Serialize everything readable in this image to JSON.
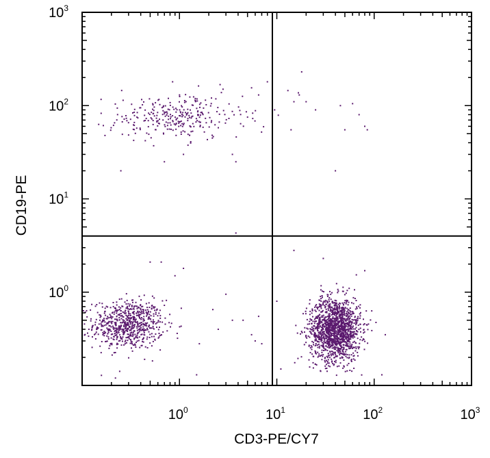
{
  "chart_data": {
    "type": "scatter",
    "xlabel": "CD3-PE/CY7",
    "ylabel": "CD19-PE",
    "xscale": "log",
    "yscale": "log",
    "xlim": [
      0.1,
      1000
    ],
    "ylim": [
      0.1,
      1000
    ],
    "x_tick_labels": [
      {
        "value": 1,
        "base": "10",
        "exp": "0"
      },
      {
        "value": 10,
        "base": "10",
        "exp": "1"
      },
      {
        "value": 100,
        "base": "10",
        "exp": "2"
      },
      {
        "value": 1000,
        "base": "10",
        "exp": "3"
      }
    ],
    "y_tick_labels": [
      {
        "value": 1,
        "base": "10",
        "exp": "0"
      },
      {
        "value": 10,
        "base": "10",
        "exp": "1"
      },
      {
        "value": 100,
        "base": "10",
        "exp": "2"
      },
      {
        "value": 1000,
        "base": "10",
        "exp": "3"
      }
    ],
    "quadrant_gates": {
      "x": 9,
      "y": 4
    },
    "grid": false,
    "point_color": "#5b1a6e",
    "populations": [
      {
        "x_center": 0.3,
        "y_center": 0.45,
        "x_log_sd": 0.18,
        "y_log_sd": 0.13,
        "count": 700
      },
      {
        "x_center": 40,
        "y_center": 0.4,
        "x_log_sd": 0.13,
        "y_log_sd": 0.17,
        "count": 1500
      },
      {
        "x_center": 0.9,
        "y_center": 75,
        "x_log_sd": 0.35,
        "y_log_sd": 0.12,
        "count": 300
      }
    ],
    "points": [
      [
        18,
        230
      ],
      [
        8,
        180
      ],
      [
        0.85,
        180
      ],
      [
        1.0,
        130
      ],
      [
        2.8,
        150
      ],
      [
        5.5,
        155
      ],
      [
        6.5,
        130
      ],
      [
        13,
        145
      ],
      [
        15,
        110
      ],
      [
        20,
        110
      ],
      [
        17,
        130
      ],
      [
        25,
        90
      ],
      [
        45,
        100
      ],
      [
        60,
        105
      ],
      [
        70,
        80
      ],
      [
        80,
        60
      ],
      [
        85,
        55
      ],
      [
        50,
        55
      ],
      [
        40,
        20
      ],
      [
        14,
        55
      ],
      [
        9.5,
        90
      ],
      [
        0.25,
        20
      ],
      [
        0.7,
        25
      ],
      [
        1.1,
        30
      ],
      [
        3.5,
        30
      ],
      [
        3.8,
        25
      ],
      [
        3.8,
        4.3
      ],
      [
        15,
        2.8
      ],
      [
        30,
        2.3
      ],
      [
        80,
        1.7
      ],
      [
        0.5,
        2.1
      ],
      [
        0.65,
        2.1
      ],
      [
        1.1,
        1.8
      ],
      [
        0.9,
        1.5
      ],
      [
        3,
        0.95
      ],
      [
        3.5,
        0.5
      ],
      [
        4.5,
        0.5
      ],
      [
        5.5,
        0.35
      ],
      [
        6,
        0.3
      ],
      [
        2.2,
        0.65
      ],
      [
        2.5,
        0.4
      ],
      [
        1.5,
        0.13
      ],
      [
        1.6,
        0.28
      ],
      [
        0.22,
        0.12
      ],
      [
        7,
        0.28
      ],
      [
        6.5,
        0.55
      ],
      [
        10,
        0.8
      ],
      [
        11,
        0.15
      ],
      [
        120,
        0.13
      ],
      [
        130,
        0.35
      ]
    ]
  }
}
